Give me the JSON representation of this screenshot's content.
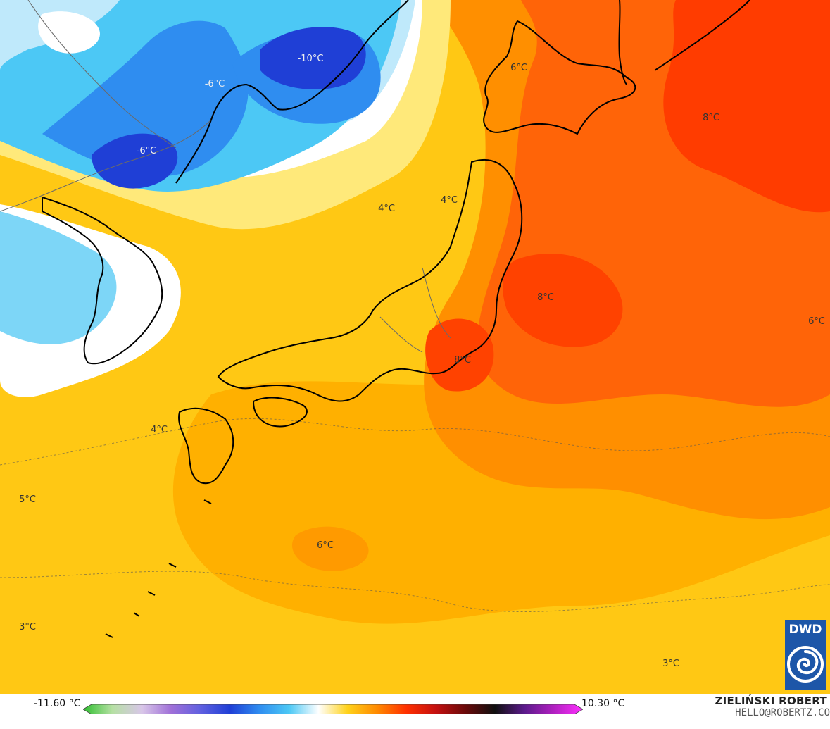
{
  "map": {
    "temperature_labels": [
      "-10°C",
      "-6°C",
      "-6°C",
      "6°C",
      "8°C",
      "4°C",
      "4°C",
      "8°C",
      "6°C",
      "8°C",
      "4°C",
      "5°C",
      "6°C",
      "3°C",
      "3°C"
    ],
    "palette": {
      "deep_blue": "#1f3fd6",
      "mid_blue": "#2f8df0",
      "light_blue": "#4cc8f5",
      "pale_blue": "#bfe9fb",
      "near_zero": "#ffffff",
      "pale_yellow": "#fff2a0",
      "yellow": "#ffd21a",
      "amber": "#ffb000",
      "orange": "#ff8a00",
      "red_orange": "#ff5a10",
      "red": "#ff3000",
      "coastline": "#000000",
      "borders": "#666666"
    }
  },
  "legend": {
    "min_label": "-11.60 °C",
    "max_label": "10.30 °C",
    "ticks": [
      "−32",
      "−24",
      "−16",
      "−8",
      "0",
      "8",
      "16",
      "24",
      "32"
    ],
    "colorbar_stops": [
      "#2fbf2f",
      "#b6e0a4",
      "#d8c6e8",
      "#a070d8",
      "#6060e0",
      "#1f3fd6",
      "#2f8df0",
      "#4cc8f5",
      "#ffffff",
      "#ffd21a",
      "#ff8a00",
      "#ff3000",
      "#c41010",
      "#6a0a0a",
      "#101010",
      "#5a1a8a",
      "#b020c0",
      "#ff30ff"
    ]
  },
  "credit": {
    "name": "ZIELIŃSKI ROBERT",
    "email": "HELLO@ROBERTZ.CO"
  },
  "logo": {
    "text": "DWD"
  }
}
